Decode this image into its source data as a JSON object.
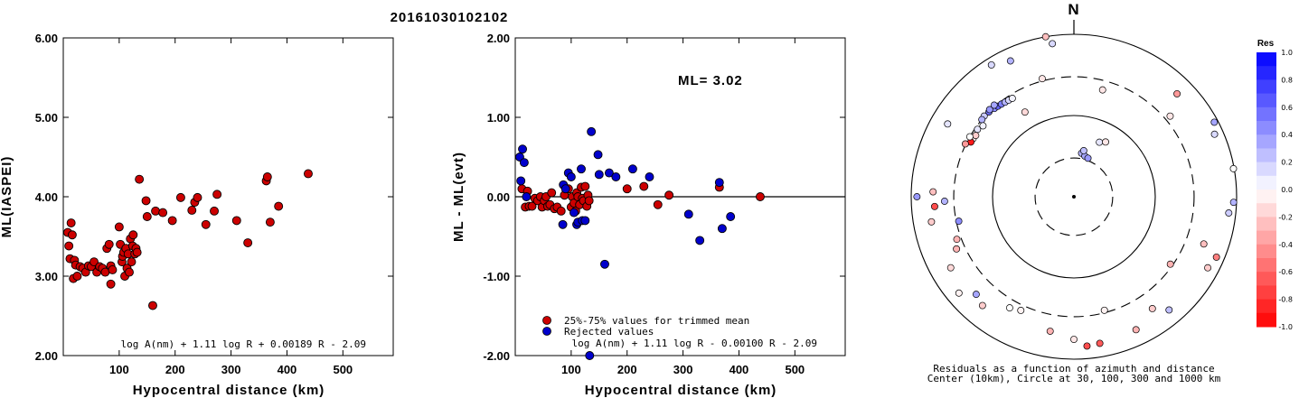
{
  "figure": {
    "title": "20161030102102",
    "north_label": "N",
    "ml_label": "ML= 3.02",
    "legend": [
      "25%-75% values for trimmed mean",
      "Rejected values"
    ],
    "formula_left": "log A(nm) + 1.11 log R + 0.00189 R - 2.09",
    "formula_mid": "log A(nm) + 1.11 log R - 0.00100 R - 2.09",
    "caption_line1": "Residuals as a function of azimuth and distance",
    "caption_line2": "Center (10km), Circle at 30, 100, 300 and 1000 km",
    "colorbar_title": "Res",
    "colorbar_ticks": [
      "1.0",
      "0.8",
      "0.6",
      "0.4",
      "0.2",
      "0.0",
      "-0.2",
      "-0.4",
      "-0.6",
      "-0.8",
      "-1.0"
    ]
  },
  "colors": {
    "accepted": "#cc0000",
    "rejected": "#0000cc",
    "outline": "#000000"
  },
  "chart_data": [
    {
      "type": "scatter",
      "title": "",
      "xlabel": "Hypocentral distance (km)",
      "ylabel": "ML(IASPEI)",
      "xlim": [
        0,
        590
      ],
      "ylim": [
        2.0,
        6.0
      ],
      "xticks": [
        100,
        200,
        300,
        400,
        500
      ],
      "xtick_labels": [
        "100",
        "200",
        "300",
        "400",
        "500"
      ],
      "yticks": [
        2,
        3,
        4,
        5,
        6
      ],
      "ytick_labels": [
        "2.00",
        "3.00",
        "4.00",
        "5.00",
        "6.00"
      ],
      "series": [
        {
          "points": [
            [
              8,
              3.55
            ],
            [
              10,
              3.38
            ],
            [
              12,
              3.22
            ],
            [
              14,
              3.67
            ],
            [
              16,
              3.52
            ],
            [
              18,
              2.97
            ],
            [
              20,
              3.2
            ],
            [
              22,
              3.14
            ],
            [
              25,
              3.0
            ],
            [
              30,
              3.12
            ],
            [
              35,
              3.1
            ],
            [
              40,
              3.05
            ],
            [
              45,
              3.13
            ],
            [
              50,
              3.12
            ],
            [
              55,
              3.18
            ],
            [
              60,
              3.05
            ],
            [
              65,
              3.12
            ],
            [
              70,
              3.1
            ],
            [
              75,
              3.05
            ],
            [
              78,
              3.35
            ],
            [
              82,
              3.4
            ],
            [
              85,
              2.9
            ],
            [
              85,
              3.13
            ],
            [
              88,
              3.08
            ],
            [
              100,
              3.62
            ],
            [
              102,
              3.4
            ],
            [
              105,
              3.18
            ],
            [
              106,
              3.25
            ],
            [
              108,
              3.3
            ],
            [
              110,
              3.0
            ],
            [
              112,
              3.35
            ],
            [
              114,
              3.1
            ],
            [
              116,
              3.28
            ],
            [
              118,
              3.05
            ],
            [
              120,
              3.47
            ],
            [
              122,
              3.18
            ],
            [
              124,
              3.38
            ],
            [
              125,
              3.52
            ],
            [
              128,
              3.28
            ],
            [
              130,
              3.35
            ],
            [
              132,
              3.3
            ],
            [
              136,
              4.22
            ],
            [
              148,
              3.95
            ],
            [
              150,
              3.75
            ],
            [
              160,
              2.63
            ],
            [
              165,
              3.82
            ],
            [
              178,
              3.8
            ],
            [
              195,
              3.7
            ],
            [
              210,
              3.99
            ],
            [
              230,
              3.83
            ],
            [
              235,
              3.93
            ],
            [
              240,
              3.99
            ],
            [
              255,
              3.65
            ],
            [
              270,
              3.82
            ],
            [
              275,
              4.03
            ],
            [
              310,
              3.7
            ],
            [
              330,
              3.42
            ],
            [
              363,
              4.2
            ],
            [
              365,
              4.25
            ],
            [
              370,
              3.68
            ],
            [
              385,
              3.88
            ],
            [
              438,
              4.29
            ]
          ]
        }
      ]
    },
    {
      "type": "scatter",
      "title": "",
      "xlabel": "Hypocentral distance (km)",
      "ylabel": "ML - ML(evt)",
      "xlim": [
        0,
        590
      ],
      "ylim": [
        -2.0,
        2.0
      ],
      "xticks": [
        100,
        200,
        300,
        400,
        500
      ],
      "xtick_labels": [
        "100",
        "200",
        "300",
        "400",
        "500"
      ],
      "yticks": [
        -2,
        -1,
        0,
        1,
        2
      ],
      "ytick_labels": [
        "-2.00",
        "-1.00",
        "0.00",
        "1.00",
        "2.00"
      ],
      "series": [
        {
          "name": "25%-75% values for trimmed mean",
          "points": [
            [
              12,
              0.1
            ],
            [
              18,
              -0.13
            ],
            [
              22,
              0.07
            ],
            [
              25,
              -0.12
            ],
            [
              30,
              -0.12
            ],
            [
              35,
              -0.02
            ],
            [
              40,
              -0.05
            ],
            [
              45,
              0.0
            ],
            [
              48,
              -0.13
            ],
            [
              52,
              -0.05
            ],
            [
              55,
              0.0
            ],
            [
              58,
              -0.12
            ],
            [
              62,
              -0.1
            ],
            [
              65,
              0.05
            ],
            [
              70,
              -0.15
            ],
            [
              75,
              -0.13
            ],
            [
              82,
              -0.18
            ],
            [
              88,
              0.02
            ],
            [
              95,
              0.1
            ],
            [
              100,
              -0.13
            ],
            [
              102,
              0.0
            ],
            [
              105,
              -0.08
            ],
            [
              108,
              -0.18
            ],
            [
              110,
              0.05
            ],
            [
              112,
              0.0
            ],
            [
              115,
              -0.1
            ],
            [
              118,
              0.12
            ],
            [
              120,
              -0.02
            ],
            [
              122,
              -0.05
            ],
            [
              125,
              0.13
            ],
            [
              128,
              -0.12
            ],
            [
              130,
              0.02
            ],
            [
              132,
              -0.05
            ],
            [
              200,
              0.1
            ],
            [
              230,
              0.13
            ],
            [
              255,
              -0.1
            ],
            [
              275,
              0.02
            ],
            [
              365,
              0.12
            ],
            [
              438,
              0.0
            ]
          ]
        },
        {
          "name": "Rejected values",
          "points": [
            [
              8,
              0.5
            ],
            [
              10,
              0.2
            ],
            [
              13,
              0.6
            ],
            [
              16,
              0.43
            ],
            [
              20,
              0.0
            ],
            [
              85,
              -0.35
            ],
            [
              86,
              0.15
            ],
            [
              90,
              0.1
            ],
            [
              95,
              0.3
            ],
            [
              100,
              0.25
            ],
            [
              105,
              -0.2
            ],
            [
              110,
              -0.35
            ],
            [
              112,
              -0.32
            ],
            [
              118,
              0.35
            ],
            [
              120,
              -0.3
            ],
            [
              125,
              -0.3
            ],
            [
              133,
              -2.0
            ],
            [
              136,
              0.82
            ],
            [
              148,
              0.53
            ],
            [
              150,
              0.28
            ],
            [
              160,
              -0.85
            ],
            [
              168,
              0.3
            ],
            [
              180,
              0.25
            ],
            [
              210,
              0.35
            ],
            [
              240,
              0.25
            ],
            [
              310,
              -0.22
            ],
            [
              330,
              -0.55
            ],
            [
              365,
              0.18
            ],
            [
              370,
              -0.4
            ],
            [
              385,
              -0.25
            ]
          ]
        }
      ]
    },
    {
      "type": "scatter",
      "subtype": "polar",
      "title": "",
      "xlabel": "",
      "ylabel": "",
      "radial_scale": "log",
      "ring_distances_km": [
        30,
        100,
        300,
        1000
      ],
      "center_km": 10,
      "colorbar_range": [
        -1.0,
        1.0
      ],
      "series": [
        {
          "fields": [
            "azimuth_deg",
            "distance_km",
            "residual"
          ],
          "points": [
            [
              10,
              35,
              0.3
            ],
            [
              15,
              33,
              0.35
            ],
            [
              20,
              32,
              0.4
            ],
            [
              12,
              38,
              0.25
            ],
            [
              25,
              55,
              0.1
            ],
            [
              30,
              60,
              -0.1
            ],
            [
              315,
              300,
              0.55
            ],
            [
              318,
              290,
              0.45
            ],
            [
              320,
              285,
              0.6
            ],
            [
              322,
              280,
              0.5
            ],
            [
              324,
              275,
              0.3
            ],
            [
              326,
              272,
              0.15
            ],
            [
              328,
              268,
              0.05
            ],
            [
              312,
              305,
              0.2
            ],
            [
              310,
              300,
              0.3
            ],
            [
              316,
              310,
              0.4
            ],
            [
              319,
              312,
              0.35
            ],
            [
              305,
              280,
              0.1
            ],
            [
              300,
              270,
              -0.05
            ],
            [
              302,
              265,
              -0.2
            ],
            [
              298,
              272,
              -0.9
            ],
            [
              308,
              262,
              0.05
            ],
            [
              300,
              300,
              0.0
            ],
            [
              296,
              305,
              -0.4
            ],
            [
              330,
              160,
              -0.15
            ],
            [
              335,
              700,
              0.3
            ],
            [
              300,
              620,
              0.1
            ],
            [
              350,
              1000,
              -0.25
            ],
            [
              352,
              800,
              0.15
            ],
            [
              328,
              820,
              0.15
            ],
            [
              15,
              230,
              -0.1
            ],
            [
              45,
              620,
              -0.4
            ],
            [
              62,
              900,
              0.35
            ],
            [
              66,
              780,
              0.15
            ],
            [
              80,
              980,
              0.0
            ],
            [
              92,
              920,
              0.3
            ],
            [
              96,
              820,
              0.2
            ],
            [
              110,
              500,
              -0.25
            ],
            [
              113,
              800,
              -0.5
            ],
            [
              118,
              730,
              -0.2
            ],
            [
              125,
              280,
              -0.3
            ],
            [
              145,
              480,
              -0.2
            ],
            [
              155,
              640,
              -0.3
            ],
            [
              165,
              280,
              -0.05
            ],
            [
              170,
              680,
              -0.65
            ],
            [
              175,
              700,
              -0.7
            ],
            [
              180,
              570,
              -0.1
            ],
            [
              190,
              480,
              -0.3
            ],
            [
              205,
              350,
              -0.05
            ],
            [
              210,
              380,
              0.0
            ],
            [
              220,
              560,
              -0.2
            ],
            [
              230,
              700,
              -0.05
            ],
            [
              240,
              560,
              -0.15
            ],
            [
              250,
              340,
              -0.3
            ],
            [
              260,
              600,
              -0.2
            ],
            [
              266,
              520,
              -0.7
            ],
            [
              270,
              850,
              0.4
            ],
            [
              272,
              540,
              -0.25
            ],
            [
              268,
              390,
              0.3
            ],
            [
              246,
              380,
              -0.3
            ],
            [
              225,
              500,
              0.35
            ],
            [
              258,
              280,
              0.45
            ],
            [
              345,
              320,
              -0.1
            ],
            [
              50,
              350,
              -0.1
            ],
            [
              140,
              660,
              0.25
            ]
          ]
        }
      ]
    }
  ]
}
